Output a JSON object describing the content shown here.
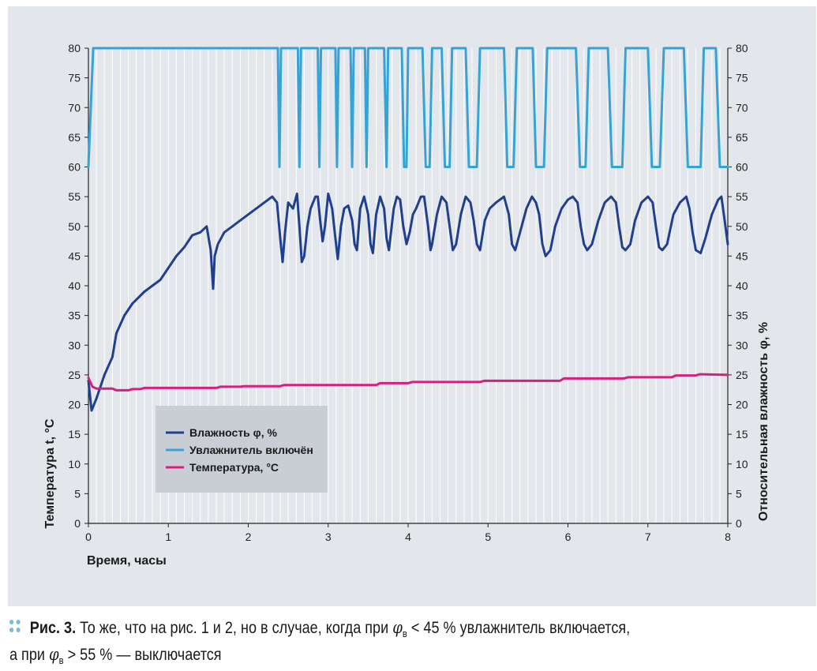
{
  "chart_data": {
    "type": "line",
    "xlabel": "Время, часы",
    "ylabel_left": "Температура t, °C",
    "ylabel_right": "Относительная влажность φ, %",
    "xlim": [
      0,
      8
    ],
    "ylim": [
      0,
      80
    ],
    "x_ticks": [
      "0",
      "1",
      "2",
      "3",
      "4",
      "5",
      "6",
      "7",
      "8"
    ],
    "y_ticks": [
      "0",
      "5",
      "10",
      "15",
      "20",
      "25",
      "30",
      "35",
      "40",
      "45",
      "50",
      "55",
      "60",
      "65",
      "70",
      "75",
      "80"
    ],
    "grid": "vertical",
    "legend_position": "center-left",
    "legend": [
      {
        "label": "Влажность φ, %",
        "color": "#1f3f8f"
      },
      {
        "label": "Увлажнитель включён",
        "color": "#36a3d6"
      },
      {
        "label": "Температура, °C",
        "color": "#d61f7f"
      }
    ],
    "series": [
      {
        "name": "Влажность φ, %",
        "color": "#1f3f8f",
        "points": [
          [
            0,
            24
          ],
          [
            0.04,
            19
          ],
          [
            0.1,
            21
          ],
          [
            0.2,
            25
          ],
          [
            0.3,
            28
          ],
          [
            0.35,
            32
          ],
          [
            0.45,
            35
          ],
          [
            0.55,
            37
          ],
          [
            0.7,
            39
          ],
          [
            0.9,
            41
          ],
          [
            1.0,
            43
          ],
          [
            1.1,
            45
          ],
          [
            1.2,
            46.5
          ],
          [
            1.3,
            48.5
          ],
          [
            1.4,
            49
          ],
          [
            1.48,
            50
          ],
          [
            1.53,
            46
          ],
          [
            1.56,
            39.5
          ],
          [
            1.58,
            45
          ],
          [
            1.62,
            47
          ],
          [
            1.7,
            49
          ],
          [
            1.8,
            50
          ],
          [
            1.9,
            51
          ],
          [
            2.0,
            52
          ],
          [
            2.1,
            53
          ],
          [
            2.2,
            54
          ],
          [
            2.3,
            55
          ],
          [
            2.36,
            54
          ],
          [
            2.4,
            48
          ],
          [
            2.43,
            44
          ],
          [
            2.46,
            49
          ],
          [
            2.5,
            54
          ],
          [
            2.56,
            53
          ],
          [
            2.61,
            55.5
          ],
          [
            2.64,
            50
          ],
          [
            2.67,
            44
          ],
          [
            2.7,
            45
          ],
          [
            2.74,
            50
          ],
          [
            2.78,
            53
          ],
          [
            2.84,
            55
          ],
          [
            2.87,
            55
          ],
          [
            2.9,
            51
          ],
          [
            2.93,
            47.5
          ],
          [
            2.96,
            50
          ],
          [
            3.0,
            55.5
          ],
          [
            3.05,
            53
          ],
          [
            3.09,
            48
          ],
          [
            3.12,
            44.5
          ],
          [
            3.16,
            50
          ],
          [
            3.2,
            53
          ],
          [
            3.25,
            53.5
          ],
          [
            3.3,
            51
          ],
          [
            3.33,
            47
          ],
          [
            3.36,
            46
          ],
          [
            3.4,
            53
          ],
          [
            3.45,
            55
          ],
          [
            3.5,
            52
          ],
          [
            3.53,
            47
          ],
          [
            3.56,
            45.5
          ],
          [
            3.6,
            52
          ],
          [
            3.65,
            55
          ],
          [
            3.7,
            53
          ],
          [
            3.73,
            48
          ],
          [
            3.76,
            46
          ],
          [
            3.82,
            53
          ],
          [
            3.86,
            55
          ],
          [
            3.9,
            54.5
          ],
          [
            3.94,
            50
          ],
          [
            3.98,
            47
          ],
          [
            4.02,
            49
          ],
          [
            4.06,
            52
          ],
          [
            4.1,
            53
          ],
          [
            4.16,
            55
          ],
          [
            4.2,
            55
          ],
          [
            4.25,
            50
          ],
          [
            4.28,
            46
          ],
          [
            4.3,
            47
          ],
          [
            4.36,
            52
          ],
          [
            4.42,
            55
          ],
          [
            4.48,
            54
          ],
          [
            4.52,
            50
          ],
          [
            4.56,
            46
          ],
          [
            4.6,
            47
          ],
          [
            4.66,
            52
          ],
          [
            4.72,
            55
          ],
          [
            4.78,
            54
          ],
          [
            4.82,
            51
          ],
          [
            4.86,
            47
          ],
          [
            4.9,
            46
          ],
          [
            4.96,
            51
          ],
          [
            5.02,
            53
          ],
          [
            5.1,
            54
          ],
          [
            5.2,
            55
          ],
          [
            5.26,
            52
          ],
          [
            5.3,
            47
          ],
          [
            5.34,
            46
          ],
          [
            5.4,
            49
          ],
          [
            5.48,
            53
          ],
          [
            5.55,
            55
          ],
          [
            5.6,
            54
          ],
          [
            5.64,
            52
          ],
          [
            5.68,
            47
          ],
          [
            5.72,
            45
          ],
          [
            5.78,
            46
          ],
          [
            5.84,
            50
          ],
          [
            5.92,
            53
          ],
          [
            6.0,
            54.5
          ],
          [
            6.06,
            55
          ],
          [
            6.12,
            54
          ],
          [
            6.16,
            50
          ],
          [
            6.2,
            47
          ],
          [
            6.24,
            46
          ],
          [
            6.3,
            47
          ],
          [
            6.38,
            51
          ],
          [
            6.46,
            54
          ],
          [
            6.54,
            55
          ],
          [
            6.6,
            54
          ],
          [
            6.64,
            50
          ],
          [
            6.68,
            46.5
          ],
          [
            6.72,
            46
          ],
          [
            6.78,
            47
          ],
          [
            6.84,
            51
          ],
          [
            6.92,
            54
          ],
          [
            7.0,
            55
          ],
          [
            7.06,
            54
          ],
          [
            7.1,
            50
          ],
          [
            7.14,
            46.5
          ],
          [
            7.18,
            46
          ],
          [
            7.24,
            47
          ],
          [
            7.32,
            52
          ],
          [
            7.4,
            54
          ],
          [
            7.48,
            55
          ],
          [
            7.52,
            53
          ],
          [
            7.56,
            49
          ],
          [
            7.6,
            46
          ],
          [
            7.66,
            45.5
          ],
          [
            7.72,
            48
          ],
          [
            7.8,
            52
          ],
          [
            7.88,
            54.5
          ],
          [
            7.92,
            55
          ],
          [
            7.96,
            51
          ],
          [
            8.0,
            47
          ]
        ]
      },
      {
        "name": "Увлажнитель включён",
        "color": "#36a3d6",
        "points": [
          [
            0,
            60
          ],
          [
            0.03,
            70
          ],
          [
            0.06,
            80
          ],
          [
            2.37,
            80
          ],
          [
            2.39,
            60
          ],
          [
            2.41,
            80
          ],
          [
            2.62,
            80
          ],
          [
            2.64,
            60
          ],
          [
            2.66,
            80
          ],
          [
            2.87,
            80
          ],
          [
            2.89,
            60
          ],
          [
            2.91,
            80
          ],
          [
            3.09,
            80
          ],
          [
            3.11,
            60
          ],
          [
            3.13,
            80
          ],
          [
            3.28,
            80
          ],
          [
            3.3,
            60
          ],
          [
            3.32,
            80
          ],
          [
            3.46,
            80
          ],
          [
            3.48,
            60
          ],
          [
            3.5,
            80
          ],
          [
            3.7,
            80
          ],
          [
            3.73,
            60
          ],
          [
            3.75,
            80
          ],
          [
            3.92,
            80
          ],
          [
            3.95,
            60
          ],
          [
            3.98,
            60
          ],
          [
            4.0,
            80
          ],
          [
            4.18,
            80
          ],
          [
            4.22,
            60
          ],
          [
            4.27,
            60
          ],
          [
            4.3,
            80
          ],
          [
            4.42,
            80
          ],
          [
            4.46,
            60
          ],
          [
            4.52,
            60
          ],
          [
            4.55,
            80
          ],
          [
            4.72,
            80
          ],
          [
            4.76,
            60
          ],
          [
            4.86,
            60
          ],
          [
            4.9,
            80
          ],
          [
            5.2,
            80
          ],
          [
            5.24,
            60
          ],
          [
            5.32,
            60
          ],
          [
            5.36,
            80
          ],
          [
            5.56,
            80
          ],
          [
            5.6,
            60
          ],
          [
            5.7,
            60
          ],
          [
            5.74,
            80
          ],
          [
            6.1,
            80
          ],
          [
            6.15,
            60
          ],
          [
            6.22,
            60
          ],
          [
            6.26,
            80
          ],
          [
            6.5,
            80
          ],
          [
            6.55,
            60
          ],
          [
            6.68,
            60
          ],
          [
            6.72,
            80
          ],
          [
            7.0,
            80
          ],
          [
            7.05,
            60
          ],
          [
            7.15,
            60
          ],
          [
            7.2,
            80
          ],
          [
            7.45,
            80
          ],
          [
            7.5,
            60
          ],
          [
            7.66,
            60
          ],
          [
            7.7,
            80
          ],
          [
            7.85,
            80
          ],
          [
            7.9,
            60
          ],
          [
            8.0,
            60
          ]
        ]
      },
      {
        "name": "Температура, °C",
        "color": "#d61f7f",
        "points": [
          [
            0,
            24.5
          ],
          [
            0.05,
            23
          ],
          [
            0.1,
            22.7
          ],
          [
            0.3,
            22.7
          ],
          [
            0.35,
            22.4
          ],
          [
            0.5,
            22.4
          ],
          [
            0.55,
            22.6
          ],
          [
            0.65,
            22.6
          ],
          [
            0.7,
            22.8
          ],
          [
            1.6,
            22.8
          ],
          [
            1.65,
            23
          ],
          [
            1.9,
            23
          ],
          [
            1.95,
            23.1
          ],
          [
            2.4,
            23.1
          ],
          [
            2.45,
            23.3
          ],
          [
            3.6,
            23.3
          ],
          [
            3.65,
            23.6
          ],
          [
            4.0,
            23.6
          ],
          [
            4.05,
            23.8
          ],
          [
            4.9,
            23.8
          ],
          [
            4.95,
            24
          ],
          [
            5.9,
            24
          ],
          [
            5.95,
            24.4
          ],
          [
            6.7,
            24.4
          ],
          [
            6.75,
            24.6
          ],
          [
            7.3,
            24.6
          ],
          [
            7.35,
            24.9
          ],
          [
            7.6,
            24.9
          ],
          [
            7.65,
            25.1
          ],
          [
            8.0,
            25
          ]
        ]
      }
    ]
  },
  "caption": {
    "prefix": "Рис. 3.",
    "line1_text": " То же, что на рис. 1 и 2, но в случае, когда при ",
    "phi": "φ",
    "phi_sub": "в",
    "lt_value": " < 45 % увлажнитель включается,",
    "line2_start": "а при ",
    "gt_value": " > 55 % — выключается"
  }
}
